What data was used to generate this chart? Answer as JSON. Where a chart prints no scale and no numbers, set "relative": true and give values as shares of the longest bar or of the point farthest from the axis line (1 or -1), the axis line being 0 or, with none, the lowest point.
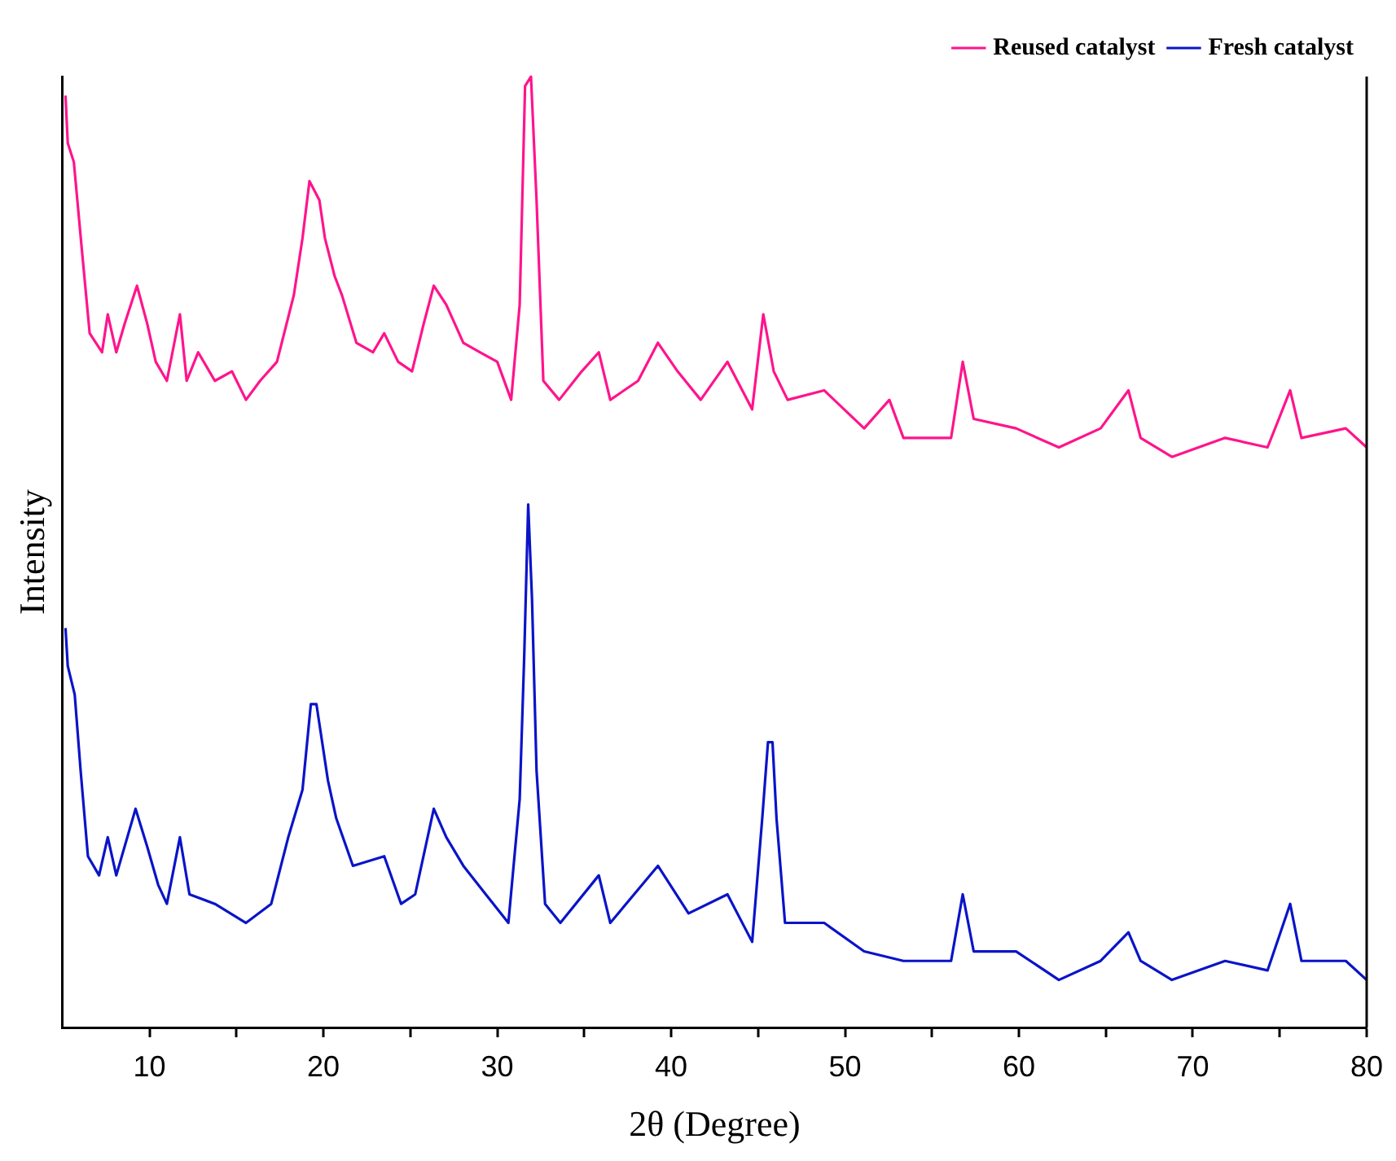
{
  "chart_data": {
    "type": "line",
    "xlabel": "2θ (Degree)",
    "ylabel": "Intensity",
    "relative": true,
    "legend": "top right",
    "marker": "none",
    "line_style": "solid",
    "grid": false,
    "xlim": [
      5,
      80
    ],
    "xticks": [
      10,
      {
        "value": 15,
        "label": null
      },
      20,
      {
        "value": 25,
        "label": null
      },
      30,
      {
        "value": 35,
        "label": null
      },
      40,
      {
        "value": 45,
        "label": null
      },
      50,
      {
        "value": 55,
        "label": null
      },
      60,
      {
        "value": 65,
        "label": null
      },
      70,
      {
        "value": 75,
        "label": null
      },
      80
    ],
    "series": [
      {
        "name": "Reused catalyst",
        "color": "#ff148c",
        "x": [
          5.17,
          5.3,
          5.65,
          6.1,
          6.56,
          7.27,
          7.6,
          8.09,
          8.57,
          9.28,
          9.87,
          10.36,
          11.0,
          11.75,
          12.14,
          12.8,
          13.76,
          14.74,
          15.55,
          16.36,
          17.33,
          18.3,
          18.8,
          19.2,
          19.77,
          20.09,
          20.65,
          21.07,
          21.9,
          22.85,
          23.5,
          24.3,
          25.1,
          25.77,
          26.35,
          27.07,
          28.05,
          29.0,
          30.0,
          30.8,
          31.29,
          31.6,
          31.94,
          32.26,
          32.65,
          33.56,
          34.86,
          35.84,
          36.5,
          38.1,
          39.24,
          40.37,
          41.7,
          43.24,
          44.66,
          45.3,
          45.9,
          46.7,
          48.8,
          51.1,
          52.55,
          53.36,
          56.1,
          56.77,
          57.4,
          59.84,
          62.3,
          64.7,
          66.3,
          67.0,
          68.8,
          71.86,
          74.3,
          75.6,
          76.25,
          78.8,
          80
        ],
        "values": [
          0.98,
          0.93,
          0.91,
          0.82,
          0.73,
          0.71,
          0.75,
          0.71,
          0.74,
          0.78,
          0.74,
          0.7,
          0.68,
          0.75,
          0.68,
          0.71,
          0.68,
          0.69,
          0.66,
          0.68,
          0.7,
          0.77,
          0.83,
          0.89,
          0.87,
          0.83,
          0.79,
          0.77,
          0.72,
          0.71,
          0.73,
          0.7,
          0.69,
          0.74,
          0.78,
          0.76,
          0.72,
          0.71,
          0.7,
          0.66,
          0.76,
          0.99,
          1.0,
          0.87,
          0.68,
          0.66,
          0.69,
          0.71,
          0.66,
          0.68,
          0.72,
          0.69,
          0.66,
          0.7,
          0.65,
          0.75,
          0.69,
          0.66,
          0.67,
          0.63,
          0.66,
          0.62,
          0.62,
          0.7,
          0.64,
          0.63,
          0.61,
          0.63,
          0.67,
          0.62,
          0.6,
          0.62,
          0.61,
          0.67,
          0.62,
          0.63,
          0.61
        ]
      },
      {
        "name": "Fresh catalyst",
        "color": "#0a14c8",
        "x": [
          5.17,
          5.3,
          5.7,
          6.04,
          6.46,
          7.1,
          7.6,
          8.09,
          9.2,
          9.87,
          10.5,
          11.0,
          11.75,
          12.3,
          13.76,
          15.55,
          17.0,
          17.98,
          18.8,
          19.28,
          19.6,
          19.93,
          20.26,
          20.74,
          21.7,
          23.5,
          24.47,
          25.28,
          26.35,
          27.07,
          28.05,
          29.34,
          30.64,
          31.29,
          31.55,
          31.78,
          32.0,
          32.26,
          32.75,
          33.63,
          35.84,
          36.5,
          39.24,
          41.0,
          43.24,
          44.66,
          45.24,
          45.57,
          45.83,
          46.06,
          46.55,
          48.8,
          51.1,
          53.36,
          56.1,
          56.77,
          57.4,
          59.84,
          62.3,
          64.7,
          66.3,
          67.0,
          68.8,
          71.86,
          74.3,
          75.6,
          76.25,
          78.8,
          80
        ],
        "values": [
          0.42,
          0.38,
          0.35,
          0.27,
          0.18,
          0.16,
          0.2,
          0.16,
          0.23,
          0.19,
          0.15,
          0.13,
          0.2,
          0.14,
          0.13,
          0.11,
          0.13,
          0.2,
          0.25,
          0.34,
          0.34,
          0.3,
          0.26,
          0.22,
          0.17,
          0.18,
          0.13,
          0.14,
          0.23,
          0.2,
          0.17,
          0.14,
          0.11,
          0.24,
          0.39,
          0.55,
          0.45,
          0.27,
          0.13,
          0.11,
          0.16,
          0.11,
          0.17,
          0.12,
          0.14,
          0.09,
          0.22,
          0.3,
          0.3,
          0.22,
          0.11,
          0.11,
          0.08,
          0.07,
          0.07,
          0.14,
          0.08,
          0.08,
          0.05,
          0.07,
          0.1,
          0.07,
          0.05,
          0.07,
          0.06,
          0.13,
          0.07,
          0.07,
          0.05
        ]
      }
    ]
  }
}
